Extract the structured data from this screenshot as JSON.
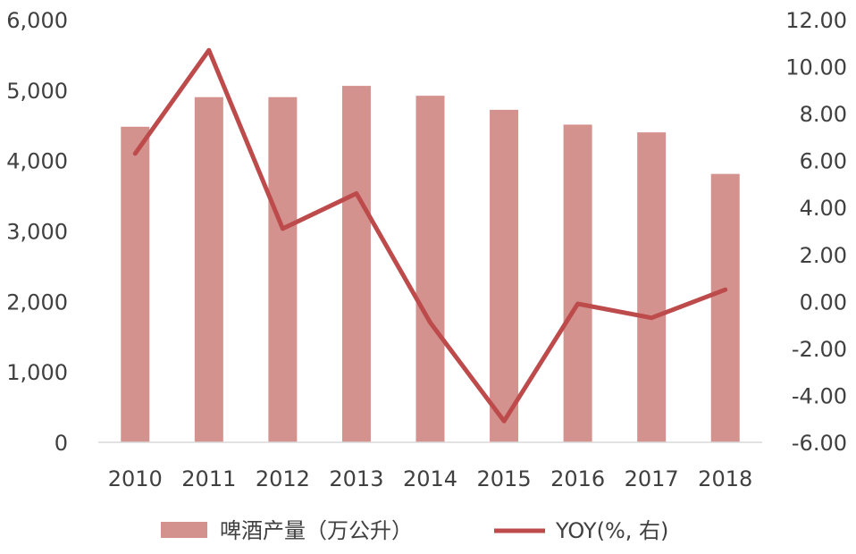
{
  "chart_data": {
    "type": "bar",
    "categories": [
      "2010",
      "2011",
      "2012",
      "2013",
      "2014",
      "2015",
      "2016",
      "2017",
      "2018"
    ],
    "series": [
      {
        "name": "啤酒产量（万公升）",
        "type": "bar",
        "axis": "left",
        "color": "#d4928f",
        "values": [
          4480,
          4900,
          4900,
          5060,
          4920,
          4720,
          4510,
          4400,
          3810
        ]
      },
      {
        "name": "YOY(%, 右)",
        "type": "line",
        "axis": "right",
        "color": "#bd4b4b",
        "values": [
          6.3,
          10.7,
          3.1,
          4.6,
          -0.9,
          -5.1,
          -0.1,
          -0.7,
          0.5
        ]
      }
    ],
    "y_left": {
      "ylim": [
        0,
        6000
      ],
      "ticks": [
        0,
        1000,
        2000,
        3000,
        4000,
        5000,
        6000
      ],
      "tick_labels": [
        "0",
        "1,000",
        "2,000",
        "3,000",
        "4,000",
        "5,000",
        "6,000"
      ]
    },
    "y_right": {
      "ylim": [
        -6,
        12
      ],
      "ticks": [
        -6,
        -4,
        -2,
        0,
        2,
        4,
        6,
        8,
        10,
        12
      ],
      "tick_labels": [
        "-6.00",
        "-4.00",
        "-2.00",
        "0.00",
        "2.00",
        "4.00",
        "6.00",
        "8.00",
        "10.00",
        "12.00"
      ]
    },
    "title": "",
    "xlabel": "",
    "grid": false,
    "legend_position": "bottom"
  }
}
